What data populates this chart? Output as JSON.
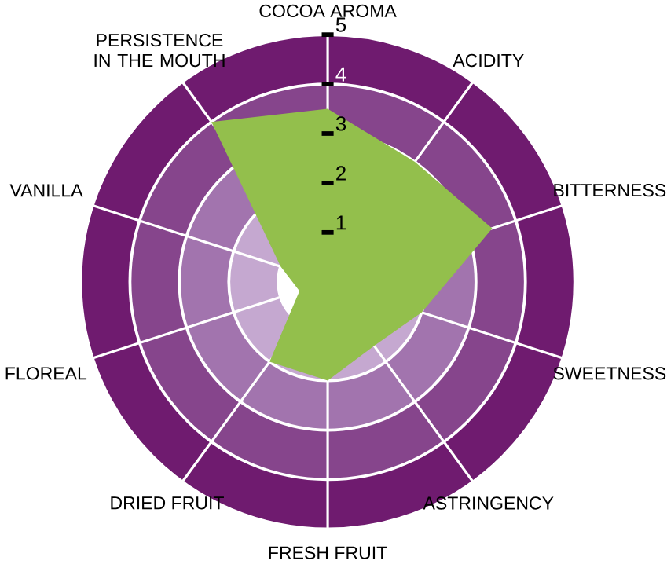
{
  "chart_data": {
    "type": "radar",
    "categories": [
      "COCOA AROMA",
      "ACIDITY",
      "BITTERNESS",
      "SWEETNESS",
      "ASTRINGENCY",
      "FRESH FRUIT",
      "DRIED FRUIT",
      "FLOREAL",
      "VANILLA",
      "PERSISTENCE IN THE MOUTH"
    ],
    "series": [
      {
        "color": "#93bf4c",
        "values": [
          3.5,
          3.0,
          3.5,
          2.0,
          1.6,
          2.0,
          2.0,
          0.6,
          1.0,
          4.0
        ]
      }
    ],
    "ylim": [
      0,
      5
    ],
    "yticks": [
      1,
      2,
      3,
      4,
      5
    ],
    "grid": true
  }
}
